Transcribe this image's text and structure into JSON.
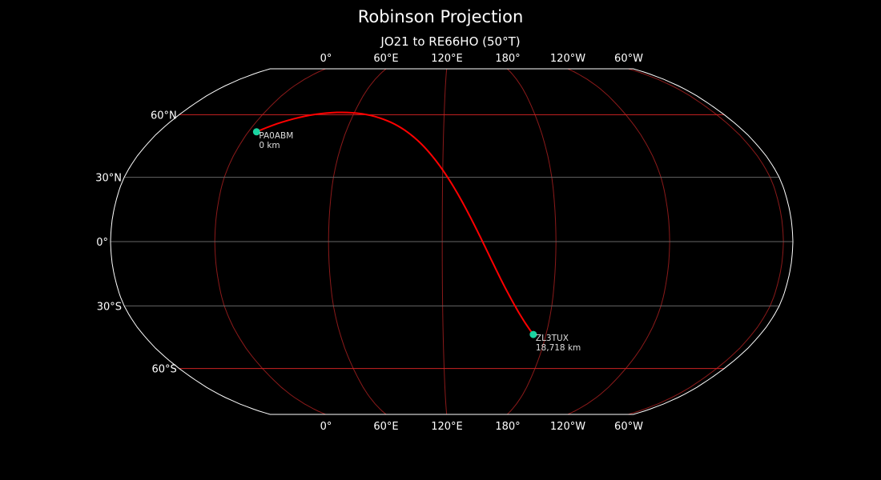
{
  "title": "Robinson Projection",
  "subtitle": "JO21 to RE66HO (50°T)",
  "map": {
    "projection": "robinson",
    "central_longitude": 125,
    "colors": {
      "background": "#000000",
      "outline": "#ffffff",
      "coastline": "#888888",
      "meridian": "#8b1a1a",
      "parallel_major": "#cc2222",
      "parallel_minor": "#666666",
      "path": "#ff0000",
      "marker": "#1ad3a0"
    },
    "lon_tick_labels": [
      "0°",
      "60°E",
      "120°E",
      "180°",
      "120°W",
      "60°W"
    ],
    "lat_ticks": [
      {
        "lat": 60,
        "label": "60°N"
      },
      {
        "lat": 30,
        "label": "30°N"
      },
      {
        "lat": 0,
        "label": "0°"
      },
      {
        "lat": -30,
        "label": "30°S"
      },
      {
        "lat": -60,
        "label": "60°S"
      }
    ],
    "meridians": [
      0,
      60,
      120,
      180,
      -120,
      -60
    ],
    "stations": [
      {
        "call": "PA0ABM",
        "distance": "0 km",
        "lat": 51.5,
        "lon": 5.0
      },
      {
        "call": "ZL3TUX",
        "distance": "18,718 km",
        "lat": -43.4,
        "lon": 172.6
      }
    ]
  }
}
